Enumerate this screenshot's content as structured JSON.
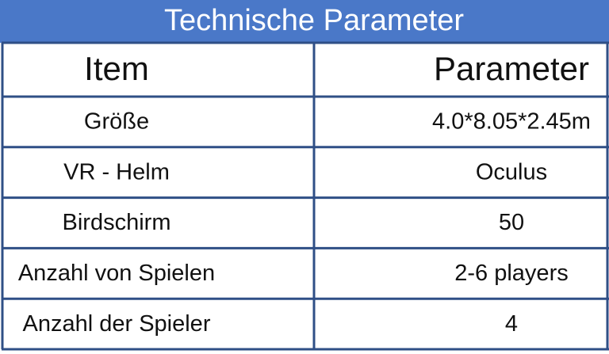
{
  "header": {
    "title": "Technische Parameter"
  },
  "table": {
    "columns": [
      "Item",
      "Parameter"
    ],
    "rows": [
      [
        "Größe",
        "4.0*8.05*2.45m"
      ],
      [
        "VR - Helm",
        "Oculus"
      ],
      [
        "Birdschirm",
        "50"
      ],
      [
        "Anzahl von Spielen",
        "2-6 players"
      ],
      [
        "Anzahl der Spieler",
        "4"
      ]
    ]
  }
}
